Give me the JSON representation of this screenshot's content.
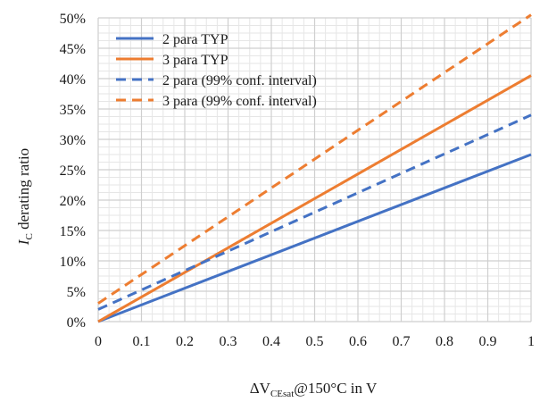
{
  "chart_data": {
    "type": "line",
    "title": "",
    "xlabel": {
      "prefix": "ΔV",
      "subscript": "CEsat",
      "suffix": "@150°C in V"
    },
    "ylabel": {
      "main": "I",
      "subscript": "C",
      "suffix": " derating ratio"
    },
    "xlim": [
      0,
      1
    ],
    "ylim": [
      0,
      0.5
    ],
    "x_ticks": [
      0,
      0.1,
      0.2,
      0.3,
      0.4,
      0.5,
      0.6,
      0.7,
      0.8,
      0.9,
      1
    ],
    "x_tick_labels": [
      "0",
      "0.1",
      "0.2",
      "0.3",
      "0.4",
      "0.5",
      "0.6",
      "0.7",
      "0.8",
      "0.9",
      "1"
    ],
    "y_ticks": [
      0,
      0.05,
      0.1,
      0.15,
      0.2,
      0.25,
      0.3,
      0.35,
      0.4,
      0.45,
      0.5
    ],
    "y_tick_labels": [
      "0%",
      "5%",
      "10%",
      "15%",
      "20%",
      "25%",
      "30%",
      "35%",
      "40%",
      "45%",
      "50%"
    ],
    "grid": "major and minor",
    "legend_position": "top-left",
    "series": [
      {
        "name": "2 para TYP",
        "color": "#4472C4",
        "dash": "solid",
        "x": [
          0,
          1
        ],
        "y": [
          0,
          0.275
        ]
      },
      {
        "name": "3 para TYP",
        "color": "#ED7D31",
        "dash": "solid",
        "x": [
          0,
          1
        ],
        "y": [
          0,
          0.405
        ]
      },
      {
        "name": "2 para (99% conf. interval)",
        "color": "#4472C4",
        "dash": "dashed",
        "x": [
          0,
          1
        ],
        "y": [
          0.02,
          0.34
        ]
      },
      {
        "name": "3 para (99% conf. interval)",
        "color": "#ED7D31",
        "dash": "dashed",
        "x": [
          0,
          1
        ],
        "y": [
          0.03,
          0.505
        ]
      }
    ]
  }
}
